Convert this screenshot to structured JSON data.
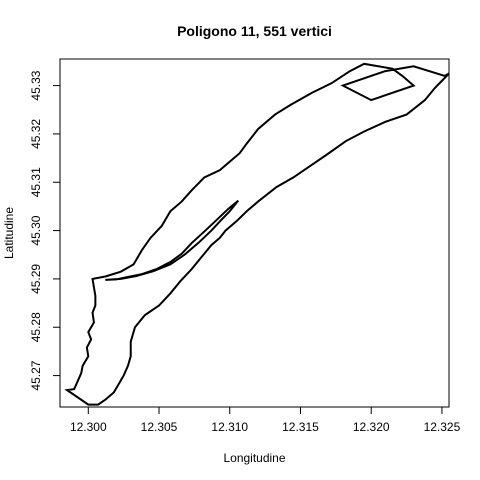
{
  "chart_data": {
    "type": "line",
    "title": "Poligono 11, 551 vertici",
    "xlabel": "Longitudine",
    "ylabel": "Latitudine",
    "xlim": [
      12.298,
      12.3255
    ],
    "ylim": [
      45.2635,
      45.3355
    ],
    "xticks": [
      12.3,
      12.305,
      12.31,
      12.315,
      12.32,
      12.325
    ],
    "xtick_labels": [
      "12.300",
      "12.305",
      "12.310",
      "12.315",
      "12.320",
      "12.325"
    ],
    "yticks": [
      45.27,
      45.28,
      45.29,
      45.3,
      45.31,
      45.32,
      45.33
    ],
    "ytick_labels": [
      "45.27",
      "45.28",
      "45.29",
      "45.30",
      "45.31",
      "45.32",
      "45.33"
    ],
    "grid": false,
    "legend": "none",
    "line_color": "#000000",
    "series": [
      {
        "closed": true,
        "x": [
          12.2985,
          12.299,
          12.2992,
          12.2995,
          12.2996,
          12.3,
          12.2999,
          12.3002,
          12.3,
          12.3004,
          12.3003,
          12.3005,
          12.3005,
          12.3003,
          12.3012,
          12.3023,
          12.3032,
          12.3038,
          12.3044,
          12.3052,
          12.3058,
          12.3066,
          12.3073,
          12.3082,
          12.3093,
          12.3099,
          12.3107,
          12.3112,
          12.312,
          12.3132,
          12.3143,
          12.3158,
          12.3172,
          12.3185,
          12.3195,
          12.3215,
          12.3222,
          12.323,
          12.32,
          12.318,
          12.321,
          12.323,
          12.3252,
          12.3255,
          12.3245,
          12.3238,
          12.3225,
          12.321,
          12.3195,
          12.3182,
          12.317,
          12.316,
          12.3145,
          12.3133,
          12.312,
          12.3112,
          12.3105,
          12.3097,
          12.3093,
          12.3087,
          12.308,
          12.3073,
          12.3065,
          12.3058,
          12.305,
          12.304,
          12.3033,
          12.303,
          12.303,
          12.3028,
          12.3025,
          12.3022,
          12.3018,
          12.3012,
          12.3007,
          12.3,
          12.2995,
          12.2985
        ],
        "y": [
          45.267,
          45.2672,
          45.2685,
          45.2705,
          45.272,
          45.274,
          45.2758,
          45.2775,
          45.279,
          45.281,
          45.283,
          45.2845,
          45.2865,
          45.29,
          45.2905,
          45.2915,
          45.293,
          45.296,
          45.2985,
          45.301,
          45.304,
          45.306,
          45.3083,
          45.311,
          45.3125,
          45.314,
          45.316,
          45.318,
          45.321,
          45.324,
          45.326,
          45.3285,
          45.3305,
          45.333,
          45.3345,
          45.3335,
          45.332,
          45.33,
          45.327,
          45.33,
          45.333,
          45.334,
          45.332,
          45.3325,
          45.3295,
          45.327,
          45.324,
          45.3225,
          45.3205,
          45.3185,
          45.316,
          45.314,
          45.311,
          45.309,
          45.306,
          45.304,
          45.302,
          45.3,
          45.2985,
          45.297,
          45.2945,
          45.292,
          45.2895,
          45.287,
          45.2845,
          45.2825,
          45.28,
          45.277,
          45.274,
          45.272,
          45.27,
          45.2685,
          45.2665,
          45.265,
          45.264,
          45.264,
          45.265,
          45.267
        ]
      },
      {
        "closed": true,
        "x": [
          12.3012,
          12.3023,
          12.3034,
          12.3046,
          12.3058,
          12.3068,
          12.3078,
          12.3087,
          12.3094,
          12.31,
          12.3106,
          12.3099,
          12.309,
          12.3082,
          12.3073,
          12.3066,
          12.3058,
          12.3048,
          12.3038,
          12.3028,
          12.302,
          12.3012
        ],
        "y": [
          45.2898,
          45.29,
          45.2906,
          45.2916,
          45.293,
          45.295,
          45.2975,
          45.3,
          45.3022,
          45.304,
          45.3062,
          45.3045,
          45.302,
          45.2998,
          45.2974,
          45.2952,
          45.2935,
          45.292,
          45.291,
          45.2904,
          45.2899,
          45.2898
        ]
      }
    ]
  }
}
